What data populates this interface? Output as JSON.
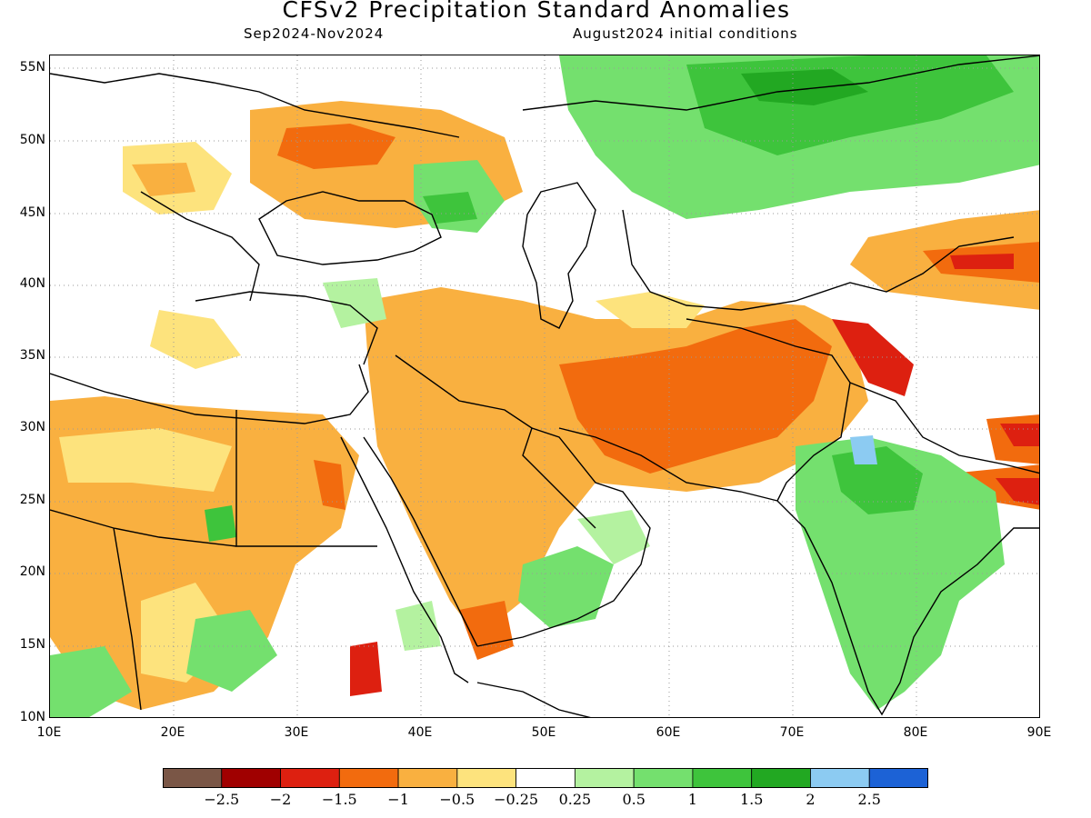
{
  "header": {
    "title": "CFSv2 Precipitation Standard Anomalies",
    "period": "Sep2024-Nov2024",
    "init": "August2024 initial conditions"
  },
  "axes": {
    "lat_labels": [
      "55N",
      "50N",
      "45N",
      "40N",
      "35N",
      "30N",
      "25N",
      "20N",
      "15N",
      "10N"
    ],
    "lon_labels": [
      "10E",
      "20E",
      "30E",
      "40E",
      "50E",
      "60E",
      "70E",
      "80E",
      "90E"
    ],
    "lat_range": [
      10,
      56
    ],
    "lon_range": [
      10,
      90
    ]
  },
  "colorbar": {
    "colors": [
      "#7a5646",
      "#a00000",
      "#dd2010",
      "#f26b0e",
      "#f9b040",
      "#fde37d",
      "#ffffff",
      "#b4f2a0",
      "#74e06e",
      "#3ec43c",
      "#22a822",
      "#8ccbf2",
      "#1c62d6"
    ],
    "labels": [
      "-2.5",
      "-2",
      "-1.5",
      "-1",
      "-0.5",
      "-0.25",
      "0.25",
      "0.5",
      "1",
      "1.5",
      "2",
      "2.5"
    ]
  }
}
